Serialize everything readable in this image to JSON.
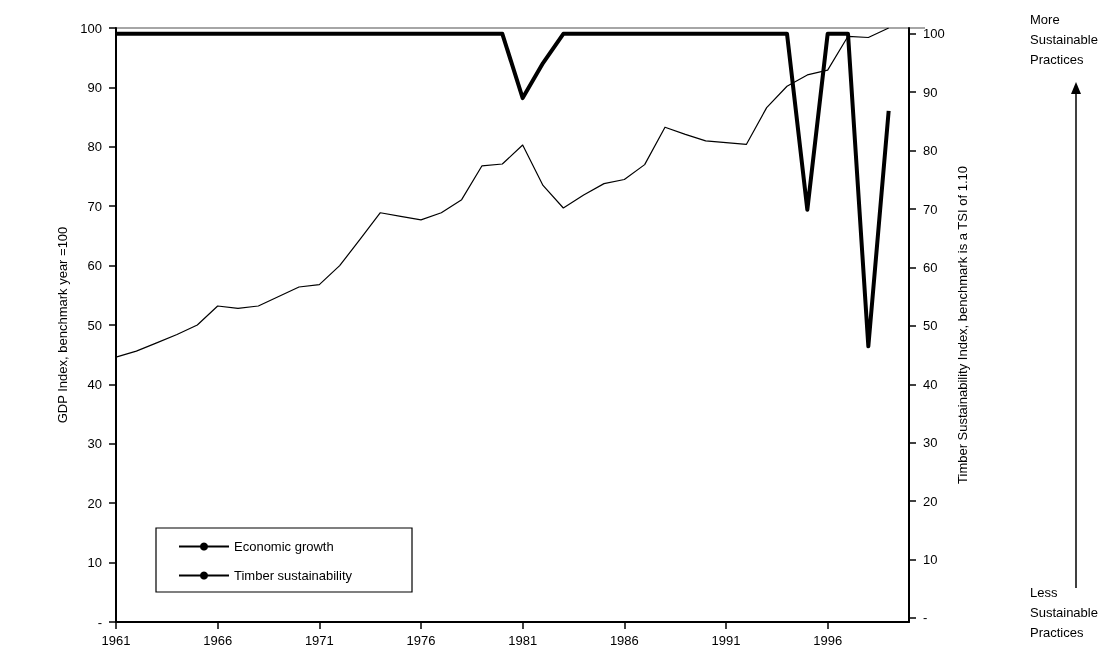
{
  "chart_data": {
    "type": "line",
    "ylabel": "GDP Index, benchmark year =100",
    "y2label": "Timber Sustainability Index, benchmark is a TSI of 1.10",
    "x": [
      1961,
      1962,
      1963,
      1964,
      1965,
      1966,
      1967,
      1968,
      1969,
      1970,
      1971,
      1972,
      1973,
      1974,
      1975,
      1976,
      1977,
      1978,
      1979,
      1980,
      1981,
      1982,
      1983,
      1984,
      1985,
      1986,
      1987,
      1988,
      1989,
      1990,
      1991,
      1992,
      1993,
      1994,
      1995,
      1996,
      1997,
      1998,
      1999
    ],
    "series": [
      {
        "name": "Economic growth",
        "color": "#000000",
        "values": [
          44.6,
          45.6,
          47.0,
          48.4,
          50.0,
          53.2,
          52.8,
          53.2,
          54.8,
          56.4,
          56.8,
          60.0,
          64.4,
          68.9,
          68.3,
          67.7,
          68.9,
          71.1,
          76.8,
          77.1,
          80.3,
          73.5,
          69.7,
          71.9,
          73.8,
          74.5,
          77.0,
          83.3,
          82.1,
          81.0,
          80.7,
          80.4,
          86.6,
          90.2,
          92.1,
          92.9,
          98.6,
          98.4,
          100
        ]
      },
      {
        "name": "Timber sustainability",
        "color": "#000000",
        "axis": "y2",
        "values": [
          100,
          100,
          100,
          100,
          100,
          100,
          100,
          100,
          100,
          100,
          100,
          100,
          100,
          100,
          100,
          100,
          100,
          100,
          100,
          100,
          89,
          95,
          100,
          100,
          100,
          100,
          100,
          100,
          100,
          100,
          100,
          100,
          100,
          100,
          69.9,
          100,
          100,
          46.5,
          86.8
        ]
      }
    ],
    "xlim": [
      1961,
      2000
    ],
    "xticks": [
      1961,
      1966,
      1971,
      1976,
      1981,
      1986,
      1991,
      1996
    ],
    "ylim": [
      0,
      100
    ],
    "yticks": [
      {
        "value": 0,
        "label": "-"
      },
      10,
      20,
      30,
      40,
      50,
      60,
      70,
      80,
      90,
      100
    ],
    "y2lim": [
      -0.7,
      101
    ],
    "y2ticks": [
      {
        "value": 0,
        "label": "-"
      },
      10,
      20,
      30,
      40,
      50,
      60,
      70,
      80,
      90,
      100
    ],
    "annotations": [
      "More Sustainable Practices",
      "Less Sustainable Practices"
    ],
    "legend": "bottom left",
    "grid": false,
    "marker": "none",
    "line_style": "solid"
  }
}
